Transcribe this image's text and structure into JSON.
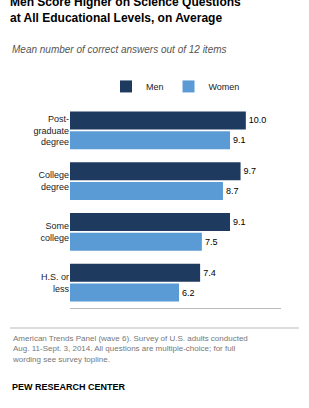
{
  "chart_data": {
    "type": "bar",
    "orientation": "horizontal",
    "title": "Men Score Higher on Science Questions\nat All Educational Levels, on Average",
    "subtitle": "Mean number of correct answers out of 12 items",
    "footnote": "American Trends Panel (wave 6). Survey of U.S. adults conducted\nAug. 11-Sept. 3, 2014. All questions are multiple-choice; for full\nwording see survey topline.",
    "source": "PEW RESEARCH CENTER",
    "categories": [
      "Post-\ngraduate\ndegree",
      "College\ndegree",
      "Some\ncollege",
      "H.S. or\nless"
    ],
    "series": [
      {
        "name": "Men",
        "color": "#1e3a5f",
        "values": [
          10.0,
          9.7,
          9.1,
          7.4
        ],
        "value_labels": [
          "10.0",
          "9.7",
          "9.1",
          "7.4"
        ]
      },
      {
        "name": "Women",
        "color": "#5b9bd5",
        "values": [
          9.1,
          8.7,
          7.5,
          6.2
        ],
        "value_labels": [
          "9.1",
          "8.7",
          "7.5",
          "6.2"
        ]
      }
    ],
    "xlim": [
      0,
      12
    ],
    "xticks": [],
    "grid": false,
    "legend": "top",
    "data_labels": true,
    "tick_labels": "y"
  }
}
